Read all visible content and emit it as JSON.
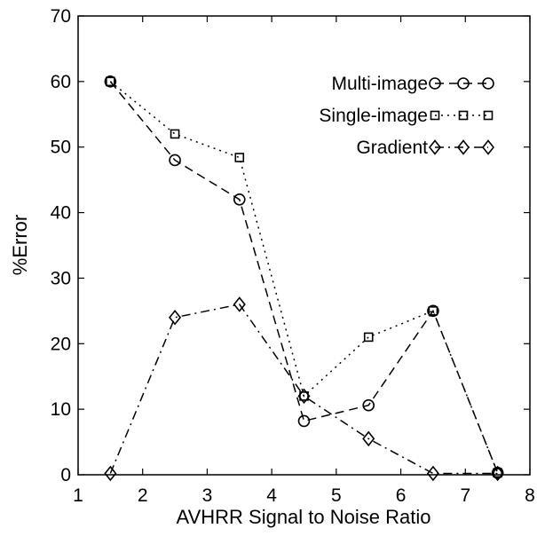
{
  "chart_data": {
    "type": "line",
    "xlabel": "AVHRR Signal to Noise Ratio",
    "ylabel": "%Error",
    "xlim": [
      1,
      8
    ],
    "ylim": [
      0,
      70
    ],
    "xticks": [
      "1",
      "2",
      "3",
      "4",
      "5",
      "6",
      "7",
      "8"
    ],
    "yticks": [
      "0",
      "10",
      "20",
      "30",
      "40",
      "50",
      "60",
      "70"
    ],
    "grid": false,
    "legend_position": "top-right",
    "series": [
      {
        "name": "Multi-image",
        "marker": "circle",
        "linestyle": "dashed",
        "x": [
          1.5,
          2.5,
          3.5,
          4.5,
          5.5,
          6.5,
          7.5
        ],
        "y": [
          60,
          48,
          42,
          8.2,
          10.6,
          25,
          0.3
        ]
      },
      {
        "name": "Single-image",
        "marker": "square",
        "linestyle": "dotted",
        "x": [
          1.5,
          2.5,
          3.5,
          4.5,
          5.5,
          6.5,
          7.5
        ],
        "y": [
          60,
          52,
          48.4,
          12,
          21,
          25,
          0.3
        ]
      },
      {
        "name": "Gradient",
        "marker": "diamond",
        "linestyle": "dashdot",
        "x": [
          1.5,
          2.5,
          3.5,
          4.5,
          5.5,
          6.5,
          7.5
        ],
        "y": [
          0.2,
          24,
          26,
          12,
          5.5,
          0.2,
          0.2
        ]
      }
    ]
  }
}
